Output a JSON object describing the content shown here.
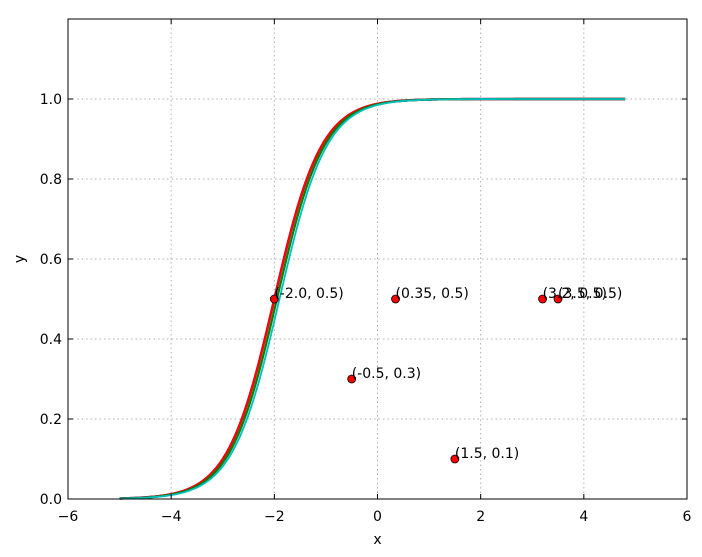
{
  "chart_data": {
    "type": "line",
    "title": "",
    "xlabel": "x",
    "ylabel": "y",
    "xlim": [
      -6,
      6
    ],
    "ylim": [
      0,
      1.2
    ],
    "xticks": [
      "−6",
      "−4",
      "−2",
      "0",
      "2",
      "4",
      "6"
    ],
    "xtick_values": [
      -6,
      -4,
      -2,
      0,
      2,
      4,
      6
    ],
    "yticks": [
      "0.0",
      "0.2",
      "0.4",
      "0.6",
      "0.8",
      "1.0"
    ],
    "ytick_values": [
      0,
      0.2,
      0.4,
      0.6,
      0.8,
      1.0
    ],
    "grid": true,
    "legend": "none",
    "curves": {
      "x_range": [
        -5,
        4.8
      ],
      "shape": "logistic",
      "midpoints": [
        -2.0,
        -1.95,
        -1.9
      ],
      "colors": [
        "#0000ff",
        "#ff0000",
        "#008000",
        "#00bfbf"
      ]
    },
    "points": [
      {
        "x": -2.0,
        "y": 0.5,
        "label": "(-2.0, 0.5)"
      },
      {
        "x": 0.35,
        "y": 0.5,
        "label": "(0.35, 0.5)"
      },
      {
        "x": -0.5,
        "y": 0.3,
        "label": "(-0.5, 0.3)"
      },
      {
        "x": 1.5,
        "y": 0.1,
        "label": "(1.5, 0.1)"
      },
      {
        "x": 3.2,
        "y": 0.5,
        "label": "(3.2, 0.5)"
      },
      {
        "x": 3.5,
        "y": 0.5,
        "label": "(3.5, 0.5)"
      }
    ],
    "point_color": "#ff0000"
  }
}
